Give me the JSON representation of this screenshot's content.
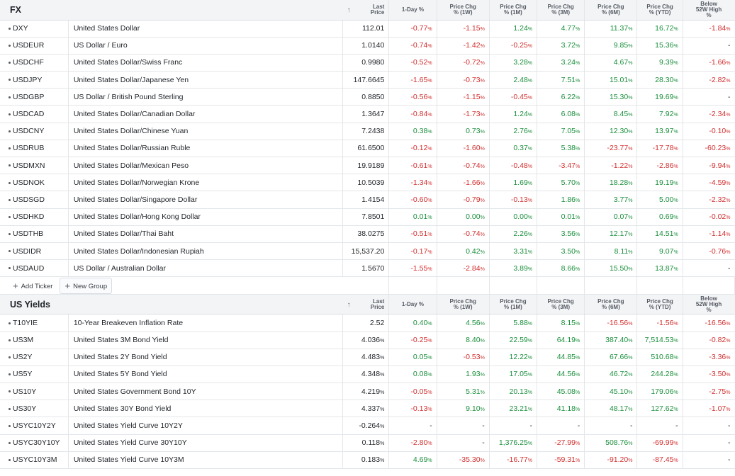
{
  "headers": {
    "arrow": "↑",
    "last_price": [
      "Last",
      "Price"
    ],
    "one_day": "1-Day %",
    "chg_1w": [
      "Price Chg",
      "% (1W)"
    ],
    "chg_1m": [
      "Price Chg",
      "% (1M)"
    ],
    "chg_3m": [
      "Price Chg",
      "% (3M)"
    ],
    "chg_6m": [
      "Price Chg",
      "% (6M)"
    ],
    "chg_ytd": [
      "Price Chg",
      "% (YTD)"
    ],
    "below52": [
      "Below",
      "52W High",
      "%"
    ]
  },
  "fx": {
    "title": "FX",
    "rows": [
      [
        "DXY",
        "United States Dollar",
        "112.01",
        "-0.77",
        "-1.15",
        "1.24",
        "4.77",
        "11.37",
        "16.72",
        "-1.84"
      ],
      [
        "USDEUR",
        "US Dollar / Euro",
        "1.0140",
        "-0.74",
        "-1.42",
        "-0.25",
        "3.72",
        "9.85",
        "15.36",
        "-"
      ],
      [
        "USDCHF",
        "United States Dollar/Swiss Franc",
        "0.9980",
        "-0.52",
        "-0.72",
        "3.28",
        "3.24",
        "4.67",
        "9.39",
        "-1.66"
      ],
      [
        "USDJPY",
        "United States Dollar/Japanese Yen",
        "147.6645",
        "-1.65",
        "-0.73",
        "2.48",
        "7.51",
        "15.01",
        "28.30",
        "-2.82"
      ],
      [
        "USDGBP",
        "US Dollar / British Pound Sterling",
        "0.8850",
        "-0.56",
        "-1.15",
        "-0.45",
        "6.22",
        "15.30",
        "19.69",
        "-"
      ],
      [
        "USDCAD",
        "United States Dollar/Canadian Dollar",
        "1.3647",
        "-0.84",
        "-1.73",
        "1.24",
        "6.08",
        "8.45",
        "7.92",
        "-2.34"
      ],
      [
        "USDCNY",
        "United States Dollar/Chinese Yuan",
        "7.2438",
        "0.38",
        "0.73",
        "2.76",
        "7.05",
        "12.30",
        "13.97",
        "-0.10"
      ],
      [
        "USDRUB",
        "United States Dollar/Russian Ruble",
        "61.6500",
        "-0.12",
        "-1.60",
        "0.37",
        "5.38",
        "-23.77",
        "-17.78",
        "-60.23"
      ],
      [
        "USDMXN",
        "United States Dollar/Mexican Peso",
        "19.9189",
        "-0.61",
        "-0.74",
        "-0.48",
        "-3.47",
        "-1.22",
        "-2.86",
        "-9.94"
      ],
      [
        "USDNOK",
        "United States Dollar/Norwegian Krone",
        "10.5039",
        "-1.34",
        "-1.66",
        "1.69",
        "5.70",
        "18.28",
        "19.19",
        "-4.59"
      ],
      [
        "USDSGD",
        "United States Dollar/Singapore Dollar",
        "1.4154",
        "-0.60",
        "-0.79",
        "-0.13",
        "1.86",
        "3.77",
        "5.00",
        "-2.32"
      ],
      [
        "USDHKD",
        "United States Dollar/Hong Kong Dollar",
        "7.8501",
        "0.01",
        "0.00",
        "0.00",
        "0.01",
        "0.07",
        "0.69",
        "-0.02"
      ],
      [
        "USDTHB",
        "United States Dollar/Thai Baht",
        "38.0275",
        "-0.51",
        "-0.74",
        "2.26",
        "3.56",
        "12.17",
        "14.51",
        "-1.14"
      ],
      [
        "USDIDR",
        "United States Dollar/Indonesian Rupiah",
        "15,537.20",
        "-0.17",
        "0.42",
        "3.31",
        "3.50",
        "8.11",
        "9.07",
        "-0.76"
      ],
      [
        "USDAUD",
        "US Dollar / Australian Dollar",
        "1.5670",
        "-1.55",
        "-2.84",
        "3.89",
        "8.66",
        "15.50",
        "13.87",
        "-"
      ]
    ],
    "add_ticker": "Add Ticker",
    "new_group": "New Group"
  },
  "yields": {
    "title": "US Yields",
    "rows": [
      [
        "T10YIE",
        "10-Year Breakeven Inflation Rate",
        "2.52",
        "0.40",
        "4.56",
        "5.88",
        "8.15",
        "-16.56",
        "-1.56",
        "-16.56"
      ],
      [
        "US3M",
        "United States 3M Bond Yield",
        "4.036%",
        "-0.25",
        "8.40",
        "22.59",
        "64.19",
        "387.40",
        "7,514.53",
        "-0.82"
      ],
      [
        "US2Y",
        "United States 2Y Bond Yield",
        "4.483%",
        "0.05",
        "-0.53",
        "12.22",
        "44.85",
        "67.66",
        "510.68",
        "-3.36"
      ],
      [
        "US5Y",
        "United States 5Y Bond Yield",
        "4.348%",
        "0.08",
        "1.93",
        "17.05",
        "44.56",
        "46.72",
        "244.28",
        "-3.50"
      ],
      [
        "US10Y",
        "United States Government Bond 10Y",
        "4.219%",
        "-0.05",
        "5.31",
        "20.13",
        "45.08",
        "45.10",
        "179.06",
        "-2.75"
      ],
      [
        "US30Y",
        "United States 30Y Bond Yield",
        "4.337%",
        "-0.13",
        "9.10",
        "23.21",
        "41.18",
        "48.17",
        "127.62",
        "-1.07"
      ],
      [
        "USYC10Y2Y",
        "United States Yield Curve 10Y2Y",
        "-0.264%",
        "-",
        "-",
        "-",
        "-",
        "-",
        "-",
        "-"
      ],
      [
        "USYC30Y10Y",
        "United States Yield Curve 30Y10Y",
        "0.118%",
        "-2.80",
        "-",
        "1,376.25",
        "-27.99",
        "508.76",
        "-69.99",
        "-"
      ],
      [
        "USYC10Y3M",
        "United States Yield Curve 10Y3M",
        "0.183%",
        "4.69",
        "-35.30",
        "-16.77",
        "-59.31",
        "-91.20",
        "-87.45",
        "-"
      ]
    ]
  },
  "colors": {
    "positive": "#1a8f3c",
    "negative": "#d32f2f"
  },
  "icons": {
    "arrow": "sort-arrow-icon",
    "plus": "plus-icon",
    "bullet": "bullet-icon"
  }
}
